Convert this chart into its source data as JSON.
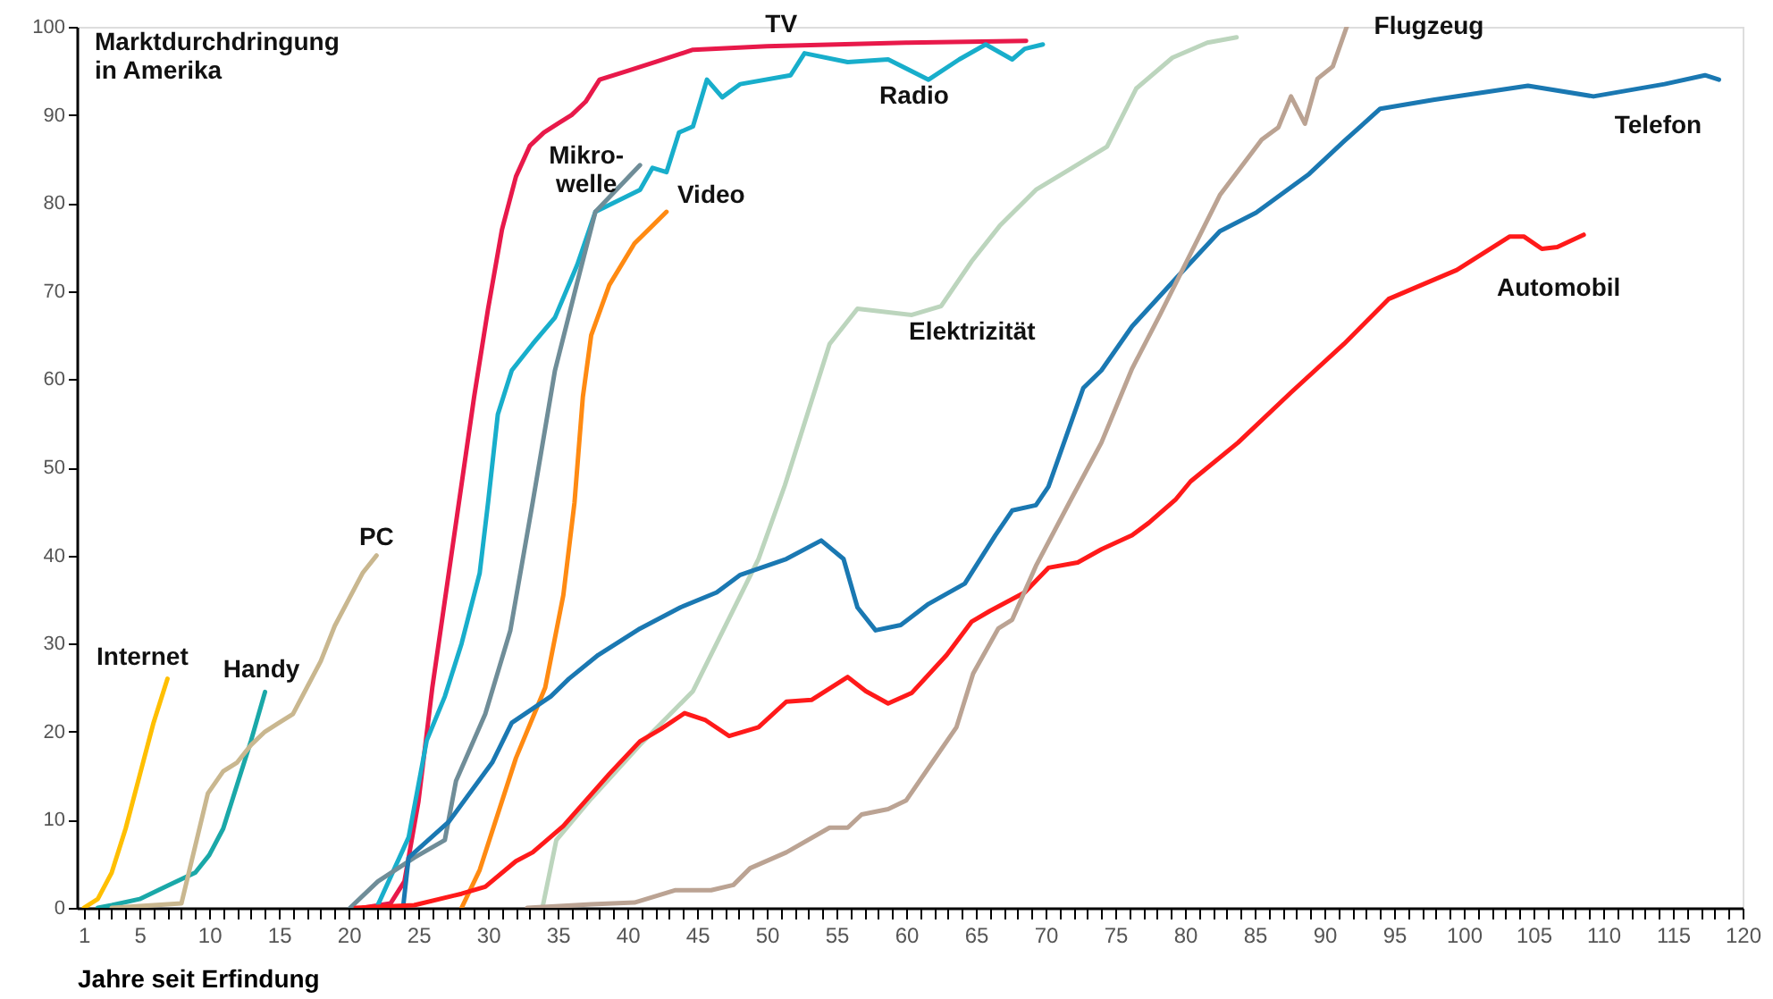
{
  "chart_data": {
    "type": "line",
    "xlabel": "Jahre seit Erfindung",
    "ylabel": "Marktdurchdringung\nin Amerika",
    "xlim": [
      0.5,
      120
    ],
    "ylim": [
      0,
      100
    ],
    "xticks": [
      1,
      {
        "value": 2,
        "label": null
      },
      {
        "value": 3,
        "label": null
      },
      {
        "value": 4,
        "label": null
      },
      5,
      {
        "value": 6,
        "label": null
      },
      {
        "value": 7,
        "label": null
      },
      {
        "value": 8,
        "label": null
      },
      {
        "value": 9,
        "label": null
      },
      10,
      {
        "value": 11,
        "label": null
      },
      {
        "value": 12,
        "label": null
      },
      {
        "value": 13,
        "label": null
      },
      {
        "value": 14,
        "label": null
      },
      15,
      {
        "value": 16,
        "label": null
      },
      {
        "value": 17,
        "label": null
      },
      {
        "value": 18,
        "label": null
      },
      {
        "value": 19,
        "label": null
      },
      20,
      {
        "value": 21,
        "label": null
      },
      {
        "value": 22,
        "label": null
      },
      {
        "value": 23,
        "label": null
      },
      {
        "value": 24,
        "label": null
      },
      25,
      {
        "value": 26,
        "label": null
      },
      {
        "value": 27,
        "label": null
      },
      {
        "value": 28,
        "label": null
      },
      {
        "value": 29,
        "label": null
      },
      30,
      {
        "value": 31,
        "label": null
      },
      {
        "value": 32,
        "label": null
      },
      {
        "value": 33,
        "label": null
      },
      {
        "value": 34,
        "label": null
      },
      35,
      {
        "value": 36,
        "label": null
      },
      {
        "value": 37,
        "label": null
      },
      {
        "value": 38,
        "label": null
      },
      {
        "value": 39,
        "label": null
      },
      40,
      {
        "value": 41,
        "label": null
      },
      {
        "value": 42,
        "label": null
      },
      {
        "value": 43,
        "label": null
      },
      {
        "value": 44,
        "label": null
      },
      45,
      {
        "value": 46,
        "label": null
      },
      {
        "value": 47,
        "label": null
      },
      {
        "value": 48,
        "label": null
      },
      {
        "value": 49,
        "label": null
      },
      50,
      {
        "value": 51,
        "label": null
      },
      {
        "value": 52,
        "label": null
      },
      {
        "value": 53,
        "label": null
      },
      {
        "value": 54,
        "label": null
      },
      55,
      {
        "value": 56,
        "label": null
      },
      {
        "value": 57,
        "label": null
      },
      {
        "value": 58,
        "label": null
      },
      {
        "value": 59,
        "label": null
      },
      60,
      {
        "value": 61,
        "label": null
      },
      {
        "value": 62,
        "label": null
      },
      {
        "value": 63,
        "label": null
      },
      {
        "value": 64,
        "label": null
      },
      65,
      {
        "value": 66,
        "label": null
      },
      {
        "value": 67,
        "label": null
      },
      {
        "value": 68,
        "label": null
      },
      {
        "value": 69,
        "label": null
      },
      70,
      {
        "value": 71,
        "label": null
      },
      {
        "value": 72,
        "label": null
      },
      {
        "value": 73,
        "label": null
      },
      {
        "value": 74,
        "label": null
      },
      75,
      {
        "value": 76,
        "label": null
      },
      {
        "value": 77,
        "label": null
      },
      {
        "value": 78,
        "label": null
      },
      {
        "value": 79,
        "label": null
      },
      80,
      {
        "value": 81,
        "label": null
      },
      {
        "value": 82,
        "label": null
      },
      {
        "value": 83,
        "label": null
      },
      {
        "value": 84,
        "label": null
      },
      85,
      {
        "value": 86,
        "label": null
      },
      {
        "value": 87,
        "label": null
      },
      {
        "value": 88,
        "label": null
      },
      {
        "value": 89,
        "label": null
      },
      90,
      {
        "value": 91,
        "label": null
      },
      {
        "value": 92,
        "label": null
      },
      {
        "value": 93,
        "label": null
      },
      {
        "value": 94,
        "label": null
      },
      95,
      {
        "value": 96,
        "label": null
      },
      {
        "value": 97,
        "label": null
      },
      {
        "value": 98,
        "label": null
      },
      {
        "value": 99,
        "label": null
      },
      100,
      {
        "value": 101,
        "label": null
      },
      {
        "value": 102,
        "label": null
      },
      {
        "value": 103,
        "label": null
      },
      {
        "value": 104,
        "label": null
      },
      105,
      {
        "value": 106,
        "label": null
      },
      {
        "value": 107,
        "label": null
      },
      {
        "value": 108,
        "label": null
      },
      {
        "value": 109,
        "label": null
      },
      110,
      {
        "value": 111,
        "label": null
      },
      {
        "value": 112,
        "label": null
      },
      {
        "value": 113,
        "label": null
      },
      {
        "value": 114,
        "label": null
      },
      115,
      {
        "value": 116,
        "label": null
      },
      {
        "value": 117,
        "label": null
      },
      {
        "value": 118,
        "label": null
      },
      {
        "value": 119,
        "label": null
      },
      120
    ],
    "yticks": [
      0,
      10,
      20,
      30,
      40,
      50,
      60,
      70,
      80,
      90,
      100
    ],
    "grid": false,
    "marker": "none",
    "line_style": "solid",
    "series": [
      {
        "name": "Internet",
        "color": "#ffbf00",
        "x": [
          1,
          2,
          3,
          4,
          5,
          6,
          7
        ],
        "values": [
          0,
          1,
          4,
          9,
          15,
          21,
          26
        ]
      },
      {
        "name": "Handy",
        "color": "#1aa8a8",
        "x": [
          2,
          3,
          5,
          7,
          9,
          10,
          11,
          12,
          13,
          14
        ],
        "values": [
          0,
          0.3,
          1,
          2.5,
          4,
          6,
          9,
          14,
          19,
          24.5
        ]
      },
      {
        "name": "PC",
        "color": "#c9b78f",
        "x": [
          3,
          8,
          9.9,
          11,
          12,
          13,
          14,
          15,
          16,
          17,
          18,
          19,
          20,
          21,
          22
        ],
        "values": [
          0,
          0.5,
          13,
          15.5,
          16.5,
          18.5,
          20,
          21,
          22,
          25,
          28,
          32,
          35,
          38,
          40
        ]
      },
      {
        "name": "TV",
        "color": "#e8194a",
        "x": [
          21,
          23,
          24,
          25,
          26,
          27,
          28,
          29,
          30,
          31,
          32,
          33,
          34,
          35,
          36,
          37,
          38,
          40,
          42,
          44.7,
          50,
          55,
          60,
          68.6
        ],
        "values": [
          0,
          0.5,
          3,
          12,
          25,
          36,
          47,
          58,
          68,
          77,
          83,
          86.5,
          88,
          89,
          90,
          91.5,
          94,
          95,
          96,
          97.4,
          97.8,
          98,
          98.2,
          98.4
        ]
      },
      {
        "name": "Radio",
        "color": "#18aecb",
        "x": [
          22,
          24.3,
          25.6,
          26.9,
          28.1,
          29.4,
          30,
          30.7,
          31.7,
          33.2,
          34.8,
          36.4,
          37.7,
          40.9,
          41.8,
          42.8,
          43.7,
          44.7,
          45.7,
          46.8,
          48.1,
          51.7,
          52.7,
          55.8,
          58.7,
          61.6,
          63.8,
          65.7,
          67.6,
          68.5,
          69.8
        ],
        "values": [
          0,
          8,
          19,
          24,
          30,
          38,
          46,
          56,
          61,
          64,
          67,
          73,
          79,
          81.5,
          84,
          83.5,
          88,
          88.7,
          94,
          92,
          93.5,
          94.5,
          97,
          96,
          96.3,
          94,
          96.3,
          98,
          96.3,
          97.5,
          98
        ]
      },
      {
        "name": "Mikro-\nwelle",
        "color": "#6f8d98",
        "x": [
          20.1,
          22.1,
          24.7,
          26.9,
          27.7,
          29.8,
          31.6,
          33.2,
          34.8,
          36.4,
          37.7,
          40.9
        ],
        "values": [
          0,
          3,
          5.7,
          7.7,
          14.4,
          22,
          31.5,
          46,
          61,
          71,
          79,
          84.3
        ]
      },
      {
        "name": "Video",
        "color": "#ff8a12",
        "x": [
          28.1,
          29.4,
          32,
          34.1,
          35.4,
          36.2,
          36.8,
          37.4,
          38.7,
          40.5,
          42.8
        ],
        "values": [
          0,
          4.3,
          17,
          25,
          35.5,
          46,
          58,
          65,
          70.7,
          75.4,
          79
        ]
      },
      {
        "name": "Elektrizität",
        "color": "#bcd5bd",
        "x": [
          33.9,
          34.9,
          37.4,
          40.9,
          44.7,
          49.4,
          51.3,
          54.5,
          56.5,
          60.4,
          62.5,
          64.7,
          66.7,
          69.3,
          71.4,
          74.4,
          76.5,
          79.1,
          81.6,
          83.7
        ],
        "values": [
          0,
          7.7,
          12.4,
          18.5,
          24.6,
          39.6,
          48,
          64,
          68,
          67.3,
          68.3,
          73.4,
          77.4,
          81.5,
          83.5,
          86.4,
          93,
          96.5,
          98.2,
          98.8
        ]
      },
      {
        "name": "Telefon",
        "color": "#1a78b2",
        "x": [
          23.9,
          24.3,
          27.2,
          30.3,
          31.7,
          34.5,
          35.8,
          37.9,
          40.9,
          43.8,
          46.4,
          48.1,
          51.4,
          53.9,
          55.5,
          56.5,
          57.8,
          59.6,
          61.6,
          64.2,
          66.4,
          67.6,
          69.3,
          70.2,
          72.7,
          74,
          76.2,
          79.5,
          82.5,
          85.1,
          88.9,
          91.4,
          94,
          97.8,
          104.6,
          109.3,
          114.4,
          117.3,
          118.3
        ],
        "values": [
          0,
          5.7,
          9.8,
          16.5,
          21,
          24,
          26,
          28.7,
          31.7,
          34.1,
          35.8,
          37.8,
          39.6,
          41.7,
          39.6,
          34.1,
          31.5,
          32.1,
          34.5,
          36.8,
          42.3,
          45.1,
          45.7,
          47.8,
          59,
          61,
          66,
          71.7,
          76.8,
          78.9,
          83.3,
          87,
          90.7,
          91.7,
          93.3,
          92.1,
          93.5,
          94.5,
          94
        ]
      },
      {
        "name": "Automobil",
        "color": "#ff1a1a",
        "x": [
          20.5,
          24.7,
          28.1,
          29.8,
          32,
          33.2,
          35.4,
          38.7,
          40.9,
          42.4,
          44.1,
          45.6,
          47.3,
          49.4,
          51.4,
          53.2,
          55.8,
          57.1,
          58.7,
          60.4,
          62.9,
          64.7,
          66,
          68.5,
          70.2,
          72.3,
          74,
          76.2,
          77.4,
          79.3,
          80.4,
          83.8,
          87.6,
          91.4,
          94.6,
          99.5,
          103.3,
          104.3,
          105.6,
          106.7,
          108.6
        ],
        "values": [
          0,
          0.3,
          1.6,
          2.4,
          5.3,
          6.3,
          9.3,
          15.2,
          18.9,
          20.3,
          22.1,
          21.3,
          19.5,
          20.5,
          23.4,
          23.6,
          26.2,
          24.6,
          23.2,
          24.4,
          28.7,
          32.5,
          33.7,
          35.8,
          38.6,
          39.2,
          40.7,
          42.3,
          43.7,
          46.3,
          48.4,
          52.8,
          58.5,
          64,
          69.1,
          72.4,
          76.2,
          76.2,
          74.8,
          75,
          76.4
        ]
      },
      {
        "name": "Flugzeug",
        "color": "#bba393",
        "x": [
          32.8,
          37.4,
          40.5,
          43.4,
          46,
          47.6,
          48.8,
          51.4,
          54.5,
          55.8,
          56.8,
          58.7,
          60,
          61.6,
          63.6,
          64.8,
          66.6,
          67.6,
          69.3,
          71.8,
          74,
          76.2,
          78.2,
          82.5,
          85.5,
          86.7,
          87.6,
          88.6,
          89.5,
          90.6,
          91.6
        ],
        "values": [
          0,
          0.4,
          0.6,
          2,
          2,
          2.6,
          4.5,
          6.3,
          9.1,
          9.1,
          10.6,
          11.2,
          12.2,
          15.9,
          20.5,
          26.6,
          31.7,
          32.7,
          38.8,
          46.3,
          52.8,
          61.2,
          67.3,
          80.9,
          87.2,
          88.6,
          92.1,
          89,
          94.1,
          95.5,
          100
        ]
      }
    ]
  }
}
